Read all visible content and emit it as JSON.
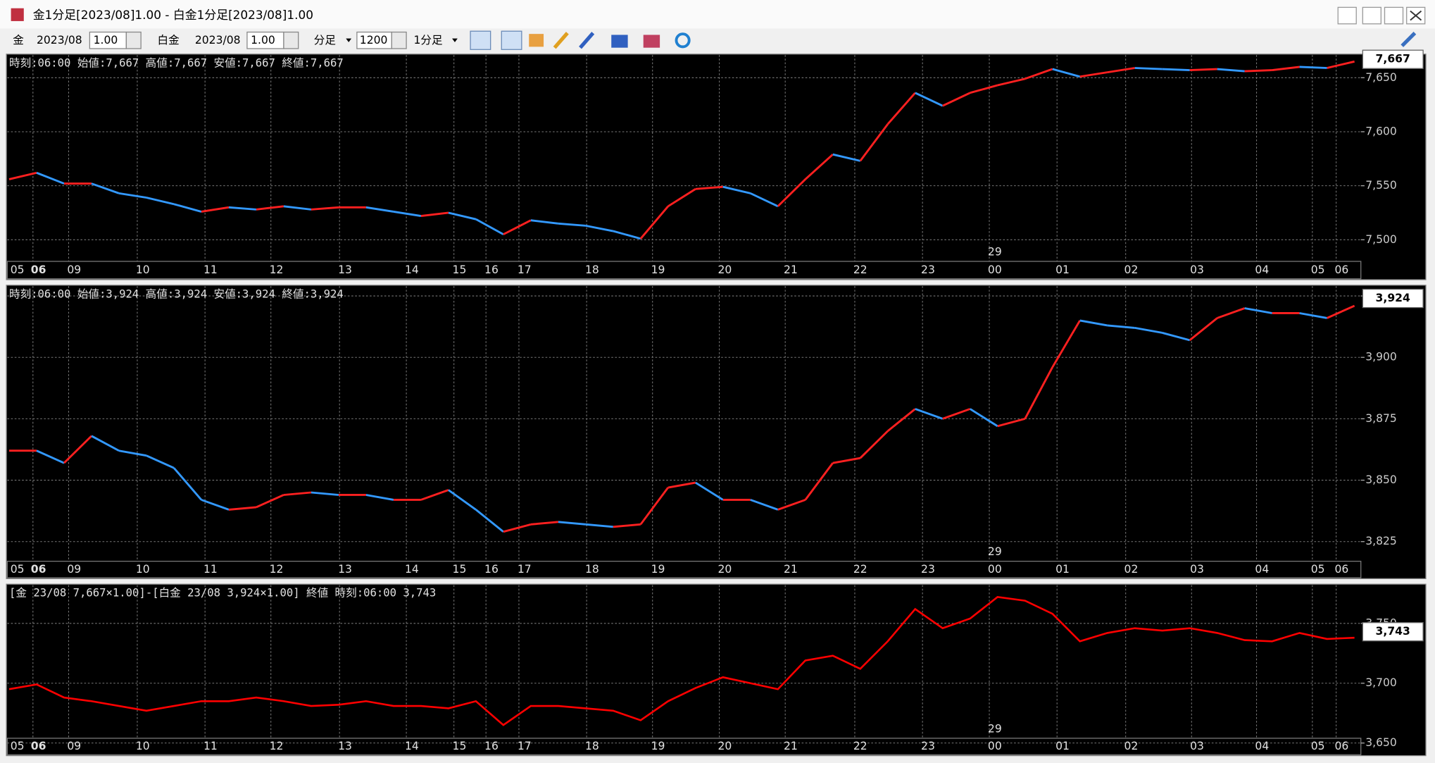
{
  "window": {
    "title": "金1分足[2023/08]1.00 - 白金1分足[2023/08]1.00"
  },
  "toolbar": {
    "item1": "金",
    "month1": "2023/08",
    "mult1": "1.00",
    "item2": "白金",
    "month2": "2023/08",
    "mult2": "1.00",
    "bar_unit": "分足",
    "count": "1200",
    "interval": "1分足"
  },
  "chart_data": [
    {
      "type": "candle-line",
      "header": "時刻:06:00 始値:7,667 高値:7,667 安値:7,667 終値:7,667",
      "hour_labels": [
        "05",
        "06",
        "09",
        "10",
        "11",
        "12",
        "13",
        "14",
        "15",
        "16",
        "17",
        "18",
        "19",
        "20",
        "21",
        "22",
        "23",
        "00",
        "01",
        "02",
        "03",
        "04",
        "05",
        "06"
      ],
      "date_label": "29",
      "values": [
        7556,
        7562,
        7552,
        7552,
        7543,
        7539,
        7533,
        7526,
        7530,
        7528,
        7531,
        7528,
        7530,
        7530,
        7526,
        7522,
        7525,
        7519,
        7505,
        7518,
        7515,
        7513,
        7508,
        7501,
        7531,
        7547,
        7549,
        7543,
        7531,
        7556,
        7579,
        7573,
        7607,
        7636,
        7624,
        7636,
        7643,
        7649,
        7658,
        7651,
        7655,
        7659,
        7658,
        7657,
        7658,
        7656,
        7657,
        7660,
        7659,
        7665
      ],
      "up_color": "#ff2020",
      "down_color": "#3399ff",
      "ylim": [
        7480,
        7671
      ],
      "yticks": [
        {
          "value": 7500,
          "label": "7,500"
        },
        {
          "value": 7550,
          "label": "7,550"
        },
        {
          "value": 7600,
          "label": "7,600"
        },
        {
          "value": 7650,
          "label": "7,650"
        }
      ],
      "last_value": {
        "value": 7667,
        "label": "7,667"
      },
      "grid": true
    },
    {
      "type": "candle-line",
      "header": "時刻:06:00 始値:3,924 高値:3,924 安値:3,924 終値:3,924",
      "hour_labels": [
        "05",
        "06",
        "09",
        "10",
        "11",
        "12",
        "13",
        "14",
        "15",
        "16",
        "17",
        "18",
        "19",
        "20",
        "21",
        "22",
        "23",
        "00",
        "01",
        "02",
        "03",
        "04",
        "05",
        "06"
      ],
      "date_label": "29",
      "values": [
        3862,
        3862,
        3857,
        3868,
        3862,
        3860,
        3855,
        3842,
        3838,
        3839,
        3844,
        3845,
        3844,
        3844,
        3842,
        3842,
        3846,
        3838,
        3829,
        3832,
        3833,
        3832,
        3831,
        3832,
        3847,
        3849,
        3842,
        3842,
        3838,
        3842,
        3857,
        3859,
        3870,
        3879,
        3875,
        3879,
        3872,
        3875,
        3896,
        3915,
        3913,
        3912,
        3910,
        3907,
        3916,
        3920,
        3918,
        3918,
        3916,
        3921
      ],
      "up_color": "#ff2020",
      "down_color": "#3399ff",
      "ylim": [
        3817,
        3929
      ],
      "yticks": [
        {
          "value": 3825,
          "label": "3,825"
        },
        {
          "value": 3850,
          "label": "3,850"
        },
        {
          "value": 3875,
          "label": "3,875"
        },
        {
          "value": 3900,
          "label": "3,900"
        },
        {
          "value": 3925,
          "label": "3,925"
        }
      ],
      "last_value": {
        "value": 3924,
        "label": "3,924"
      },
      "grid": true
    },
    {
      "type": "line",
      "header": "[金 23/08 7,667×1.00]-[白金 23/08 3,924×1.00] 終値 時刻:06:00 3,743",
      "hour_labels": [
        "05",
        "06",
        "09",
        "10",
        "11",
        "12",
        "13",
        "14",
        "15",
        "16",
        "17",
        "18",
        "19",
        "20",
        "21",
        "22",
        "23",
        "00",
        "01",
        "02",
        "03",
        "04",
        "05",
        "06"
      ],
      "date_label": "29",
      "values": [
        3695,
        3699,
        3688,
        3685,
        3681,
        3677,
        3681,
        3685,
        3685,
        3688,
        3685,
        3681,
        3682,
        3685,
        3681,
        3681,
        3679,
        3685,
        3665,
        3681,
        3681,
        3679,
        3677,
        3669,
        3685,
        3696,
        3705,
        3700,
        3695,
        3719,
        3723,
        3712,
        3735,
        3762,
        3746,
        3754,
        3772,
        3769,
        3758,
        3735,
        3742,
        3746,
        3744,
        3746,
        3742,
        3736,
        3735,
        3742,
        3737,
        3738
      ],
      "color": "#ff0000",
      "ylim": [
        3654,
        3782
      ],
      "yticks": [
        {
          "value": 3650,
          "label": "3,650"
        },
        {
          "value": 3700,
          "label": "3,700"
        },
        {
          "value": 3750,
          "label": "3,750"
        }
      ],
      "last_value": {
        "value": 3743,
        "label": "3,743"
      },
      "grid": true
    }
  ]
}
